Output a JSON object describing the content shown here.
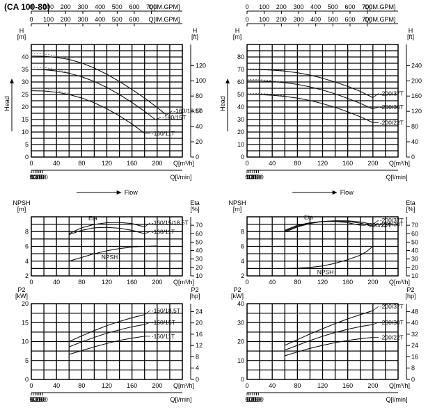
{
  "title": "(CA 100-80)",
  "chart_data": [
    {
      "id": "head-left",
      "type": "line",
      "top_axes": [
        {
          "label": "Q[IM.GPM]",
          "ticks": [
            0,
            100,
            200,
            300,
            400,
            500,
            600
          ]
        },
        {
          "label": "Q[IM.GPM]",
          "ticks": [
            0,
            100,
            200,
            300,
            400,
            500,
            600,
            700
          ]
        }
      ],
      "left_unit": [
        "H",
        "[m]"
      ],
      "right_unit": [
        "H",
        "[ft]"
      ],
      "side_label": "Head",
      "x": {
        "ticks": [
          0,
          40,
          80,
          120,
          160,
          200
        ],
        "label": "Q[m³/h]",
        "lim": [
          0,
          240
        ]
      },
      "y": {
        "ticks": [
          0,
          5,
          10,
          15,
          20,
          25,
          30,
          35,
          40
        ],
        "lim": [
          0,
          45
        ]
      },
      "y2": {
        "ticks": [
          0,
          20,
          40,
          60,
          80,
          100,
          120
        ],
        "lim": [
          0,
          147.6
        ]
      },
      "bottom_axis": {
        "label": "Q[l/min]",
        "ticks": [
          0,
          50,
          100,
          150,
          200,
          250,
          300
        ]
      },
      "flow_label": "Flow",
      "series": [
        {
          "name": "160/18.5T",
          "x": [
            0,
            20,
            40,
            60,
            80,
            100,
            120,
            140,
            160,
            180,
            200,
            215
          ],
          "y": [
            40.4,
            40.3,
            39.8,
            39.0,
            37.6,
            35.6,
            33.1,
            30.2,
            27.0,
            23.6,
            19.8,
            16.8
          ]
        },
        {
          "name": "160/15T",
          "x": [
            0,
            20,
            40,
            60,
            80,
            100,
            120,
            140,
            160,
            180,
            197
          ],
          "y": [
            35.0,
            34.9,
            34.4,
            33.5,
            32.1,
            30.2,
            27.8,
            25.0,
            21.8,
            18.3,
            15.0
          ]
        },
        {
          "name": "160/11T",
          "x": [
            0,
            20,
            40,
            60,
            80,
            100,
            120,
            140,
            160,
            180
          ],
          "y": [
            26.5,
            26.4,
            25.9,
            25.0,
            23.6,
            21.7,
            19.3,
            16.5,
            13.2,
            9.5
          ]
        }
      ],
      "dashed_extensions": [
        {
          "x": [
            0,
            20,
            40,
            60
          ],
          "y": [
            41.5,
            41.2,
            40.4,
            39.3
          ]
        },
        {
          "x": [
            0,
            20,
            40,
            60
          ],
          "y": [
            36.0,
            35.8,
            35.0,
            33.8
          ]
        },
        {
          "x": [
            0,
            20,
            40,
            60
          ],
          "y": [
            27.6,
            27.4,
            26.6,
            25.4
          ]
        }
      ]
    },
    {
      "id": "head-right",
      "type": "line",
      "top_axes": [
        {
          "label": "Q[IM.GPM]",
          "ticks": [
            0,
            100,
            200,
            300,
            400,
            500,
            600,
            700
          ]
        },
        {
          "label": "Q[IM.GPM]",
          "ticks": [
            0,
            100,
            200,
            300,
            400,
            500,
            600,
            700
          ]
        }
      ],
      "left_unit": [
        "H",
        "[m]"
      ],
      "right_unit": [
        "H",
        "[ft]"
      ],
      "side_label": "Head",
      "x": {
        "ticks": [
          0,
          40,
          80,
          120,
          160,
          200
        ],
        "label": "Q[m³/h]",
        "lim": [
          0,
          240
        ]
      },
      "y": {
        "ticks": [
          0,
          10,
          20,
          30,
          40,
          50,
          60,
          70,
          80
        ],
        "lim": [
          0,
          90
        ]
      },
      "y2": {
        "ticks": [
          0,
          40,
          80,
          120,
          160,
          200,
          240
        ],
        "lim": [
          0,
          295.3
        ]
      },
      "bottom_axis": {
        "label": "Q[l/min]",
        "ticks": [
          0,
          50,
          100,
          150,
          200,
          250,
          300
        ]
      },
      "flow_label": "Flow",
      "series": [
        {
          "name": "200/37T",
          "x": [
            0,
            20,
            40,
            60,
            80,
            100,
            120,
            140,
            160,
            180,
            200
          ],
          "y": [
            70.0,
            69.9,
            69.5,
            68.7,
            67.4,
            65.5,
            63.0,
            60.0,
            56.5,
            52.5,
            47.5
          ]
        },
        {
          "name": "200/30T",
          "x": [
            0,
            20,
            40,
            60,
            80,
            100,
            120,
            140,
            160,
            180,
            200
          ],
          "y": [
            61.0,
            60.9,
            60.4,
            59.5,
            58.1,
            56.1,
            53.6,
            50.5,
            46.9,
            42.9,
            38.3
          ]
        },
        {
          "name": "200/22T",
          "x": [
            0,
            20,
            40,
            60,
            80,
            100,
            120,
            140,
            160,
            180,
            200
          ],
          "y": [
            50.0,
            49.9,
            49.4,
            48.5,
            47.1,
            45.2,
            42.7,
            39.7,
            36.2,
            32.2,
            27.5
          ]
        }
      ],
      "dashed_extensions": [
        {
          "x": [
            0,
            20,
            40,
            60
          ],
          "y": [
            70.5,
            70.4,
            69.9,
            69.0
          ]
        },
        {
          "x": [
            0,
            20,
            40,
            60
          ],
          "y": [
            62.0,
            61.8,
            61.2,
            60.1
          ]
        },
        {
          "x": [
            0,
            20,
            40,
            60
          ],
          "y": [
            51.0,
            50.8,
            50.2,
            49.1
          ]
        }
      ]
    },
    {
      "id": "npsh-left",
      "type": "line",
      "left_unit": [
        "NPSH",
        "[m]"
      ],
      "right_unit": [
        "Eta",
        "[%]"
      ],
      "x": {
        "ticks": [
          0,
          40,
          80,
          120,
          160,
          200
        ],
        "label": "Q[m³/h]",
        "lim": [
          0,
          240
        ]
      },
      "y": {
        "ticks": [
          2,
          4,
          6,
          8
        ],
        "lim": [
          2,
          10
        ]
      },
      "y2": {
        "ticks": [
          10,
          20,
          30,
          40,
          50,
          60,
          70
        ],
        "lim": [
          10,
          80
        ]
      },
      "curve_labels": [
        "Eta",
        "NPSH"
      ],
      "series": [
        {
          "name": "160/15/18.5T",
          "kind": "eta",
          "x": [
            60,
            80,
            100,
            120,
            140,
            160,
            180
          ],
          "y": [
            60,
            67,
            71,
            73,
            73.3,
            72,
            68
          ]
        },
        {
          "name": "160/11T",
          "kind": "eta",
          "x": [
            60,
            80,
            100,
            120,
            140,
            160,
            180
          ],
          "y": [
            59,
            64,
            67,
            67.5,
            66.5,
            64,
            60
          ]
        },
        {
          "name": "NPSH",
          "kind": "npsh",
          "x": [
            60,
            80,
            100,
            120,
            140,
            160,
            180,
            200
          ],
          "y": [
            4.0,
            4.5,
            5.0,
            5.4,
            5.7,
            5.9,
            6.0,
            6.05
          ]
        }
      ]
    },
    {
      "id": "npsh-right",
      "type": "line",
      "left_unit": [
        "NPSH",
        "[m]"
      ],
      "right_unit": [
        "Eta",
        "[%]"
      ],
      "x": {
        "ticks": [
          0,
          40,
          80,
          120,
          160,
          200
        ],
        "label": "Q[m³/h]",
        "lim": [
          0,
          240
        ]
      },
      "y": {
        "ticks": [
          2,
          4,
          6,
          8
        ],
        "lim": [
          2,
          10
        ]
      },
      "y2": {
        "ticks": [
          10,
          20,
          30,
          40,
          50,
          60,
          70
        ],
        "lim": [
          10,
          80
        ]
      },
      "curve_labels": [
        "Eta",
        "NPSH"
      ],
      "series": [
        {
          "name": "200/37T",
          "kind": "eta",
          "x": [
            60,
            80,
            100,
            120,
            140,
            160,
            180,
            200
          ],
          "y": [
            62,
            68,
            72,
            74.5,
            75.3,
            75.2,
            74,
            71
          ]
        },
        {
          "name": "200/30T",
          "kind": "eta",
          "x": [
            60,
            80,
            100,
            120,
            140,
            160,
            180,
            200
          ],
          "y": [
            63,
            69,
            72.5,
            74.5,
            75,
            74.5,
            72.5,
            69
          ]
        },
        {
          "name": "200/22T",
          "kind": "eta",
          "x": [
            60,
            80,
            100,
            120,
            140,
            160,
            180
          ],
          "y": [
            64,
            70,
            73,
            74.5,
            74.5,
            73,
            70
          ]
        },
        {
          "name": "NPSH",
          "kind": "npsh",
          "x": [
            60,
            80,
            100,
            120,
            140,
            160,
            180,
            190,
            200
          ],
          "y": [
            3.0,
            3.05,
            3.15,
            3.35,
            3.7,
            4.2,
            4.8,
            5.3,
            6.0
          ]
        }
      ]
    },
    {
      "id": "power-left",
      "type": "line",
      "left_unit": [
        "P2",
        "[kW]"
      ],
      "right_unit": [
        "P2",
        "[hp]"
      ],
      "x": {
        "ticks": [
          0,
          40,
          80,
          120,
          160,
          200
        ],
        "label": "Q[m³/h]",
        "lim": [
          0,
          240
        ]
      },
      "y": {
        "ticks": [
          0,
          5,
          10,
          15,
          20
        ],
        "lim": [
          0,
          20
        ]
      },
      "y2": {
        "ticks": [
          0,
          4,
          8,
          12,
          16,
          20,
          24
        ],
        "lim": [
          0,
          26.8
        ]
      },
      "bottom_axis": {
        "label": "Q[l/min]",
        "ticks": [
          0,
          50,
          100,
          150,
          200,
          250,
          300
        ]
      },
      "series": [
        {
          "name": "160/18.5T",
          "x": [
            60,
            80,
            100,
            120,
            140,
            160,
            180
          ],
          "y": [
            10.0,
            11.5,
            12.9,
            14.2,
            15.3,
            16.3,
            17.1
          ]
        },
        {
          "name": "160/15T",
          "x": [
            60,
            80,
            100,
            120,
            140,
            160,
            180
          ],
          "y": [
            8.6,
            9.9,
            11.1,
            12.2,
            13.1,
            13.9,
            14.5
          ]
        },
        {
          "name": "160/11T",
          "x": [
            60,
            80,
            100,
            120,
            140,
            160,
            180
          ],
          "y": [
            6.6,
            7.6,
            8.6,
            9.5,
            10.3,
            10.9,
            11.4
          ]
        }
      ]
    },
    {
      "id": "power-right",
      "type": "line",
      "left_unit": [
        "P2",
        "[kW]"
      ],
      "right_unit": [
        "P2",
        "[hp]"
      ],
      "x": {
        "ticks": [
          0,
          40,
          80,
          120,
          160,
          200
        ],
        "label": "Q[m³/h]",
        "lim": [
          0,
          240
        ]
      },
      "y": {
        "ticks": [
          0,
          10,
          20,
          30,
          40
        ],
        "lim": [
          0,
          40
        ]
      },
      "y2": {
        "ticks": [
          0,
          8,
          16,
          24,
          32,
          40,
          48
        ],
        "lim": [
          0,
          53.6
        ]
      },
      "bottom_axis": {
        "label": "Q[l/min]",
        "ticks": [
          0,
          50,
          100,
          150,
          200,
          250,
          300
        ]
      },
      "series": [
        {
          "name": "200/37T",
          "x": [
            60,
            80,
            100,
            120,
            140,
            160,
            180,
            200
          ],
          "y": [
            18.0,
            21.0,
            24.0,
            26.8,
            29.5,
            32.0,
            34.2,
            36.3
          ]
        },
        {
          "name": "200/30T",
          "x": [
            60,
            80,
            100,
            120,
            140,
            160,
            180,
            200
          ],
          "y": [
            15.5,
            18.0,
            20.5,
            22.8,
            24.8,
            26.5,
            27.9,
            29.0
          ]
        },
        {
          "name": "200/22T",
          "x": [
            60,
            80,
            100,
            120,
            140,
            160,
            180,
            200
          ],
          "y": [
            12.5,
            14.5,
            16.4,
            18.0,
            19.4,
            20.6,
            21.5,
            22.2
          ]
        }
      ]
    }
  ]
}
